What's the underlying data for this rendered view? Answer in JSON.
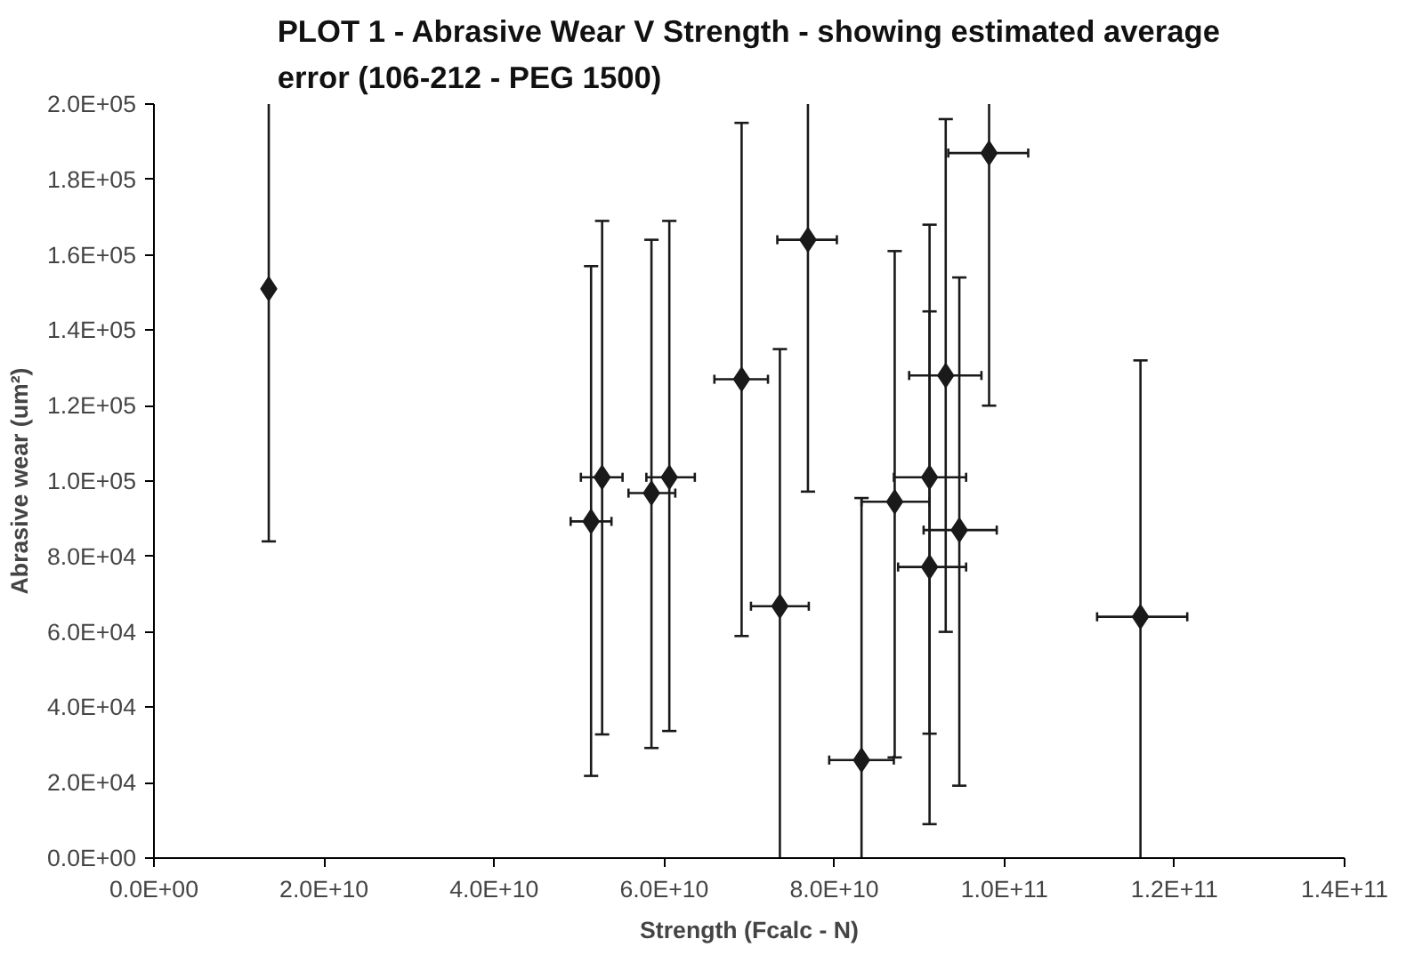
{
  "chart_data": {
    "type": "scatter",
    "title": "PLOT 1 - Abrasive Wear V Strength - showing estimated average error (106-212 - PEG 1500)",
    "xlabel": "Strength (Fcalc - N)",
    "ylabel": "Abrasive wear (um²)",
    "x": [
      13500000000.0,
      51400000000.0,
      52700000000.0,
      58500000000.0,
      60600000000.0,
      69100000000.0,
      73600000000.0,
      76900000000.0,
      83200000000.0,
      87100000000.0,
      91200000000.0,
      91200000000.0,
      93100000000.0,
      94700000000.0,
      98200000000.0,
      116000000000.0
    ],
    "series": [
      {
        "color": "#1a1a1a",
        "values": [
          151000,
          89300,
          101000,
          96800,
          101000,
          127000,
          66800,
          164000,
          26000,
          94500,
          101000,
          77200,
          128000,
          87000,
          187000,
          64000
        ],
        "errors": [
          [
            84000,
            200000
          ],
          [
            21800,
            157000
          ],
          [
            32800,
            169000
          ],
          [
            29200,
            164000
          ],
          [
            33700,
            169000
          ],
          [
            58900,
            195000
          ],
          [
            0,
            135000
          ],
          [
            97200,
            200000
          ],
          [
            0,
            95500
          ],
          [
            26700,
            161000
          ],
          [
            33000,
            168000
          ],
          [
            9000,
            145000
          ],
          [
            60000,
            196000
          ],
          [
            19200,
            154000
          ],
          [
            120000,
            200000
          ],
          [
            0,
            132000
          ]
        ],
        "xerrors": [
          null,
          [
            49000000000.0,
            53800000000.0
          ],
          [
            50200000000.0,
            55100000000.0
          ],
          [
            55800000000.0,
            61300000000.0
          ],
          [
            57900000000.0,
            63600000000.0
          ],
          [
            65900000000.0,
            72200000000.0
          ],
          [
            70200000000.0,
            77000000000.0
          ],
          [
            73300000000.0,
            80300000000.0
          ],
          [
            79400000000.0,
            87000000000.0
          ],
          [
            83200000000.0,
            91200000000.0
          ],
          [
            87000000000.0,
            95500000000.0
          ],
          [
            87500000000.0,
            95500000000.0
          ],
          [
            88800000000.0,
            97300000000.0
          ],
          [
            90500000000.0,
            99100000000.0
          ],
          [
            93400000000.0,
            102800000000.0
          ],
          [
            110900000000.0,
            121500000000.0
          ]
        ]
      }
    ],
    "marker": "diamond",
    "grid": false,
    "xlim": [
      0,
      140000000000.0
    ],
    "xticks": [
      {
        "value": 0,
        "label": "0.0E+00"
      },
      {
        "value": 20000000000.0,
        "label": "2.0E+10"
      },
      {
        "value": 40000000000.0,
        "label": "4.0E+10"
      },
      {
        "value": 60000000000.0,
        "label": "6.0E+10"
      },
      {
        "value": 80000000000.0,
        "label": "8.0E+10"
      },
      {
        "value": 100000000000.0,
        "label": "1.0E+11"
      },
      {
        "value": 120000000000.0,
        "label": "1.2E+11"
      },
      {
        "value": 140000000000.0,
        "label": "1.4E+11"
      }
    ],
    "ylim": [
      0,
      200000
    ],
    "yticks": [
      {
        "value": 0,
        "label": "0.0E+00"
      },
      {
        "value": 20000,
        "label": "2.0E+04"
      },
      {
        "value": 40000,
        "label": "4.0E+04"
      },
      {
        "value": 60000,
        "label": "6.0E+04"
      },
      {
        "value": 80000,
        "label": "8.0E+04"
      },
      {
        "value": 100000,
        "label": "1.0E+05"
      },
      {
        "value": 120000,
        "label": "1.2E+05"
      },
      {
        "value": 140000,
        "label": "1.4E+05"
      },
      {
        "value": 160000,
        "label": "1.6E+05"
      },
      {
        "value": 180000,
        "label": "1.8E+05"
      },
      {
        "value": 200000,
        "label": "2.0E+05"
      }
    ]
  }
}
